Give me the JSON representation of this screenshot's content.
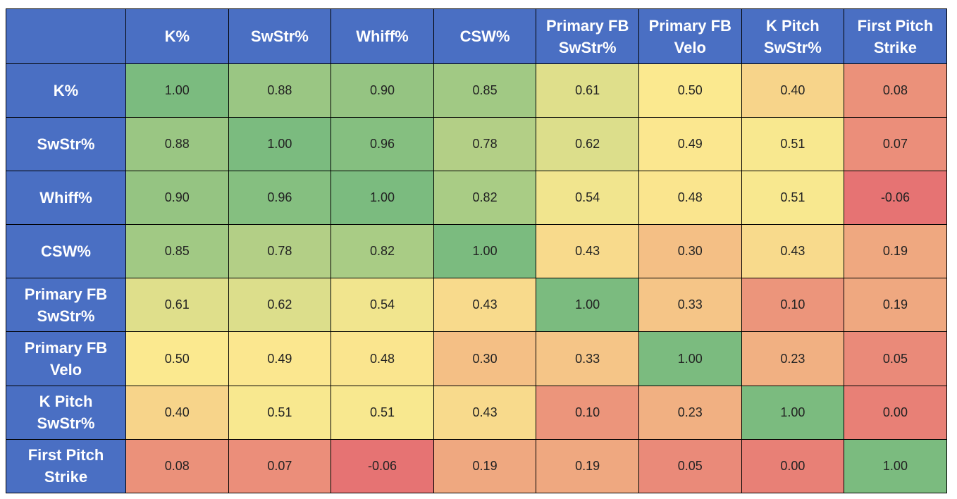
{
  "chart_data": {
    "type": "heatmap",
    "title": "",
    "metrics": [
      "K%",
      "SwStr%",
      "Whiff%",
      "CSW%",
      "Primary FB SwStr%",
      "Primary FB Velo",
      "K Pitch SwStr%",
      "First Pitch Strike"
    ],
    "header_lines": [
      [
        "K%"
      ],
      [
        "SwStr%"
      ],
      [
        "Whiff%"
      ],
      [
        "CSW%"
      ],
      [
        "Primary FB",
        "SwStr%"
      ],
      [
        "Primary FB",
        "Velo"
      ],
      [
        "K Pitch",
        "SwStr%"
      ],
      [
        "First Pitch",
        "Strike"
      ]
    ],
    "values": [
      [
        1.0,
        0.88,
        0.9,
        0.85,
        0.61,
        0.5,
        0.4,
        0.08
      ],
      [
        0.88,
        1.0,
        0.96,
        0.78,
        0.62,
        0.49,
        0.51,
        0.07
      ],
      [
        0.9,
        0.96,
        1.0,
        0.82,
        0.54,
        0.48,
        0.51,
        -0.06
      ],
      [
        0.85,
        0.78,
        0.82,
        1.0,
        0.43,
        0.3,
        0.43,
        0.19
      ],
      [
        0.61,
        0.62,
        0.54,
        0.43,
        1.0,
        0.33,
        0.1,
        0.19
      ],
      [
        0.5,
        0.49,
        0.48,
        0.3,
        0.33,
        1.0,
        0.23,
        0.05
      ],
      [
        0.4,
        0.51,
        0.51,
        0.43,
        0.1,
        0.23,
        1.0,
        0.0
      ],
      [
        0.08,
        0.07,
        -0.06,
        0.19,
        0.19,
        0.05,
        0.0,
        1.0
      ]
    ],
    "display_values": [
      [
        "1.00",
        "0.88",
        "0.90",
        "0.85",
        "0.61",
        "0.50",
        "0.40",
        "0.08"
      ],
      [
        "0.88",
        "1.00",
        "0.96",
        "0.78",
        "0.62",
        "0.49",
        "0.51",
        "0.07"
      ],
      [
        "0.90",
        "0.96",
        "1.00",
        "0.82",
        "0.54",
        "0.48",
        "0.51",
        "-0.06"
      ],
      [
        "0.85",
        "0.78",
        "0.82",
        "1.00",
        "0.43",
        "0.30",
        "0.43",
        "0.19"
      ],
      [
        "0.61",
        "0.62",
        "0.54",
        "0.43",
        "1.00",
        "0.33",
        "0.10",
        "0.19"
      ],
      [
        "0.50",
        "0.49",
        "0.48",
        "0.30",
        "0.33",
        "1.00",
        "0.23",
        "0.05"
      ],
      [
        "0.40",
        "0.51",
        "0.51",
        "0.43",
        "0.10",
        "0.23",
        "1.00",
        "0.00"
      ],
      [
        "0.08",
        "0.07",
        "-0.06",
        "0.19",
        "0.19",
        "0.05",
        "0.00",
        "1.00"
      ]
    ],
    "color_scale": {
      "min_color": "#e67373",
      "mid_color": "#fbe98f",
      "max_color": "#7bbb7f",
      "header_bg": "#4a6fc3",
      "header_text": "#ffffff"
    }
  }
}
